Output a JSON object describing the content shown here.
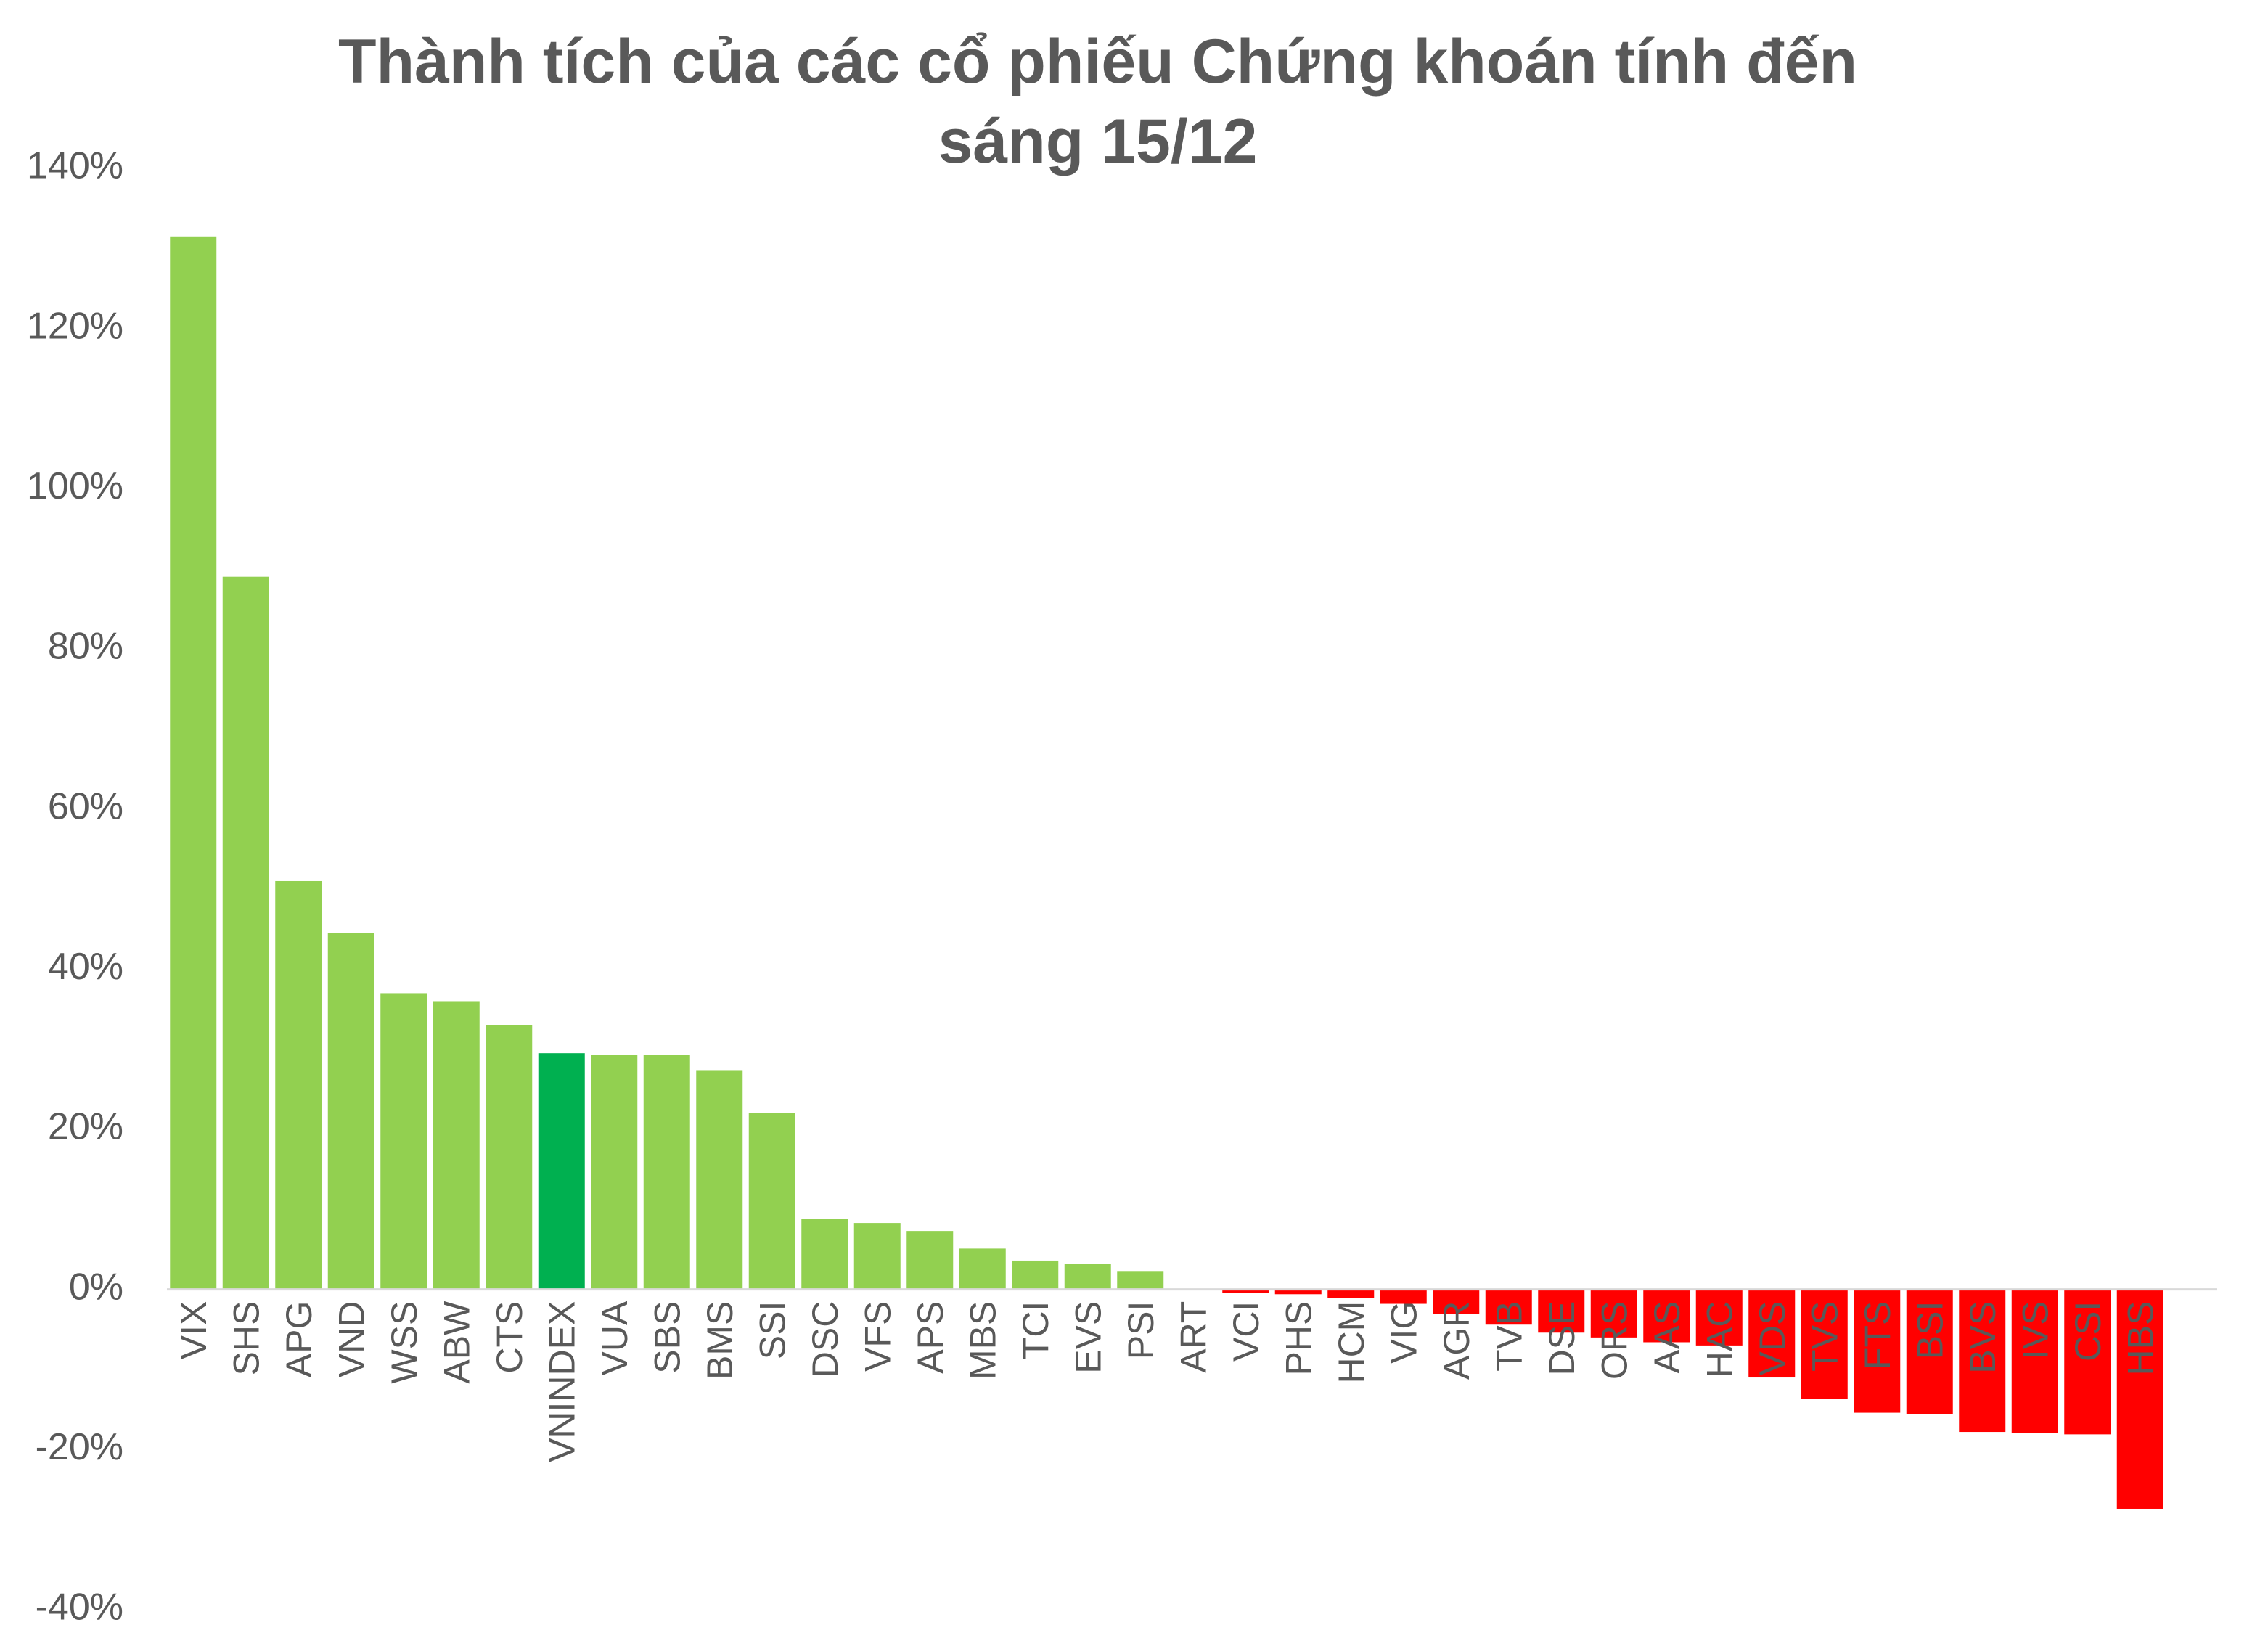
{
  "chart_data": {
    "type": "bar",
    "title_lines": [
      "Thành tích của các cổ phiếu Chứng khoán tính đến",
      "sáng 15/12"
    ],
    "xlabel": "",
    "ylabel": "",
    "ylim": [
      -40,
      140
    ],
    "yticks": [
      140,
      120,
      100,
      80,
      60,
      40,
      20,
      0,
      -20,
      -40
    ],
    "ytick_labels": [
      "140%",
      "120%",
      "100%",
      "80%",
      "60%",
      "40%",
      "20%",
      "0%",
      "-20%",
      "-40%"
    ],
    "grid": false,
    "legend": "none",
    "colors": {
      "positive": "#92D050",
      "highlight": "#00B050",
      "negative": "#FF0000",
      "axis_text": "#595959",
      "baseline": "#D9D9D9"
    },
    "highlight_category": "VNINDEX",
    "categories": [
      "VIX",
      "SHS",
      "APG",
      "VND",
      "WSS",
      "ABW",
      "CTS",
      "VNINDEX",
      "VUA",
      "SBS",
      "BMS",
      "SSI",
      "DSC",
      "VFS",
      "APS",
      "MBS",
      "TCI",
      "EVS",
      "PSI",
      "ART",
      "VCI",
      "PHS",
      "HCM",
      "VIG",
      "AGR",
      "TVB",
      "DSE",
      "ORS",
      "AAS",
      "HAC",
      "VDS",
      "TVS",
      "FTS",
      "BSI",
      "BVS",
      "IVS",
      "CSI",
      "HBS"
    ],
    "values": [
      131.5,
      89,
      51,
      44.5,
      37,
      36,
      33,
      29.5,
      29.3,
      29.3,
      27.3,
      22,
      8.8,
      8.3,
      7.3,
      5.1,
      3.6,
      3.2,
      2.3,
      0,
      -0.4,
      -0.6,
      -1.1,
      -1.8,
      -3.1,
      -4.4,
      -5.4,
      -6,
      -6.6,
      -7,
      -11,
      -13.7,
      -15.4,
      -15.6,
      -17.8,
      -17.9,
      -18.1,
      -27.4
    ]
  }
}
